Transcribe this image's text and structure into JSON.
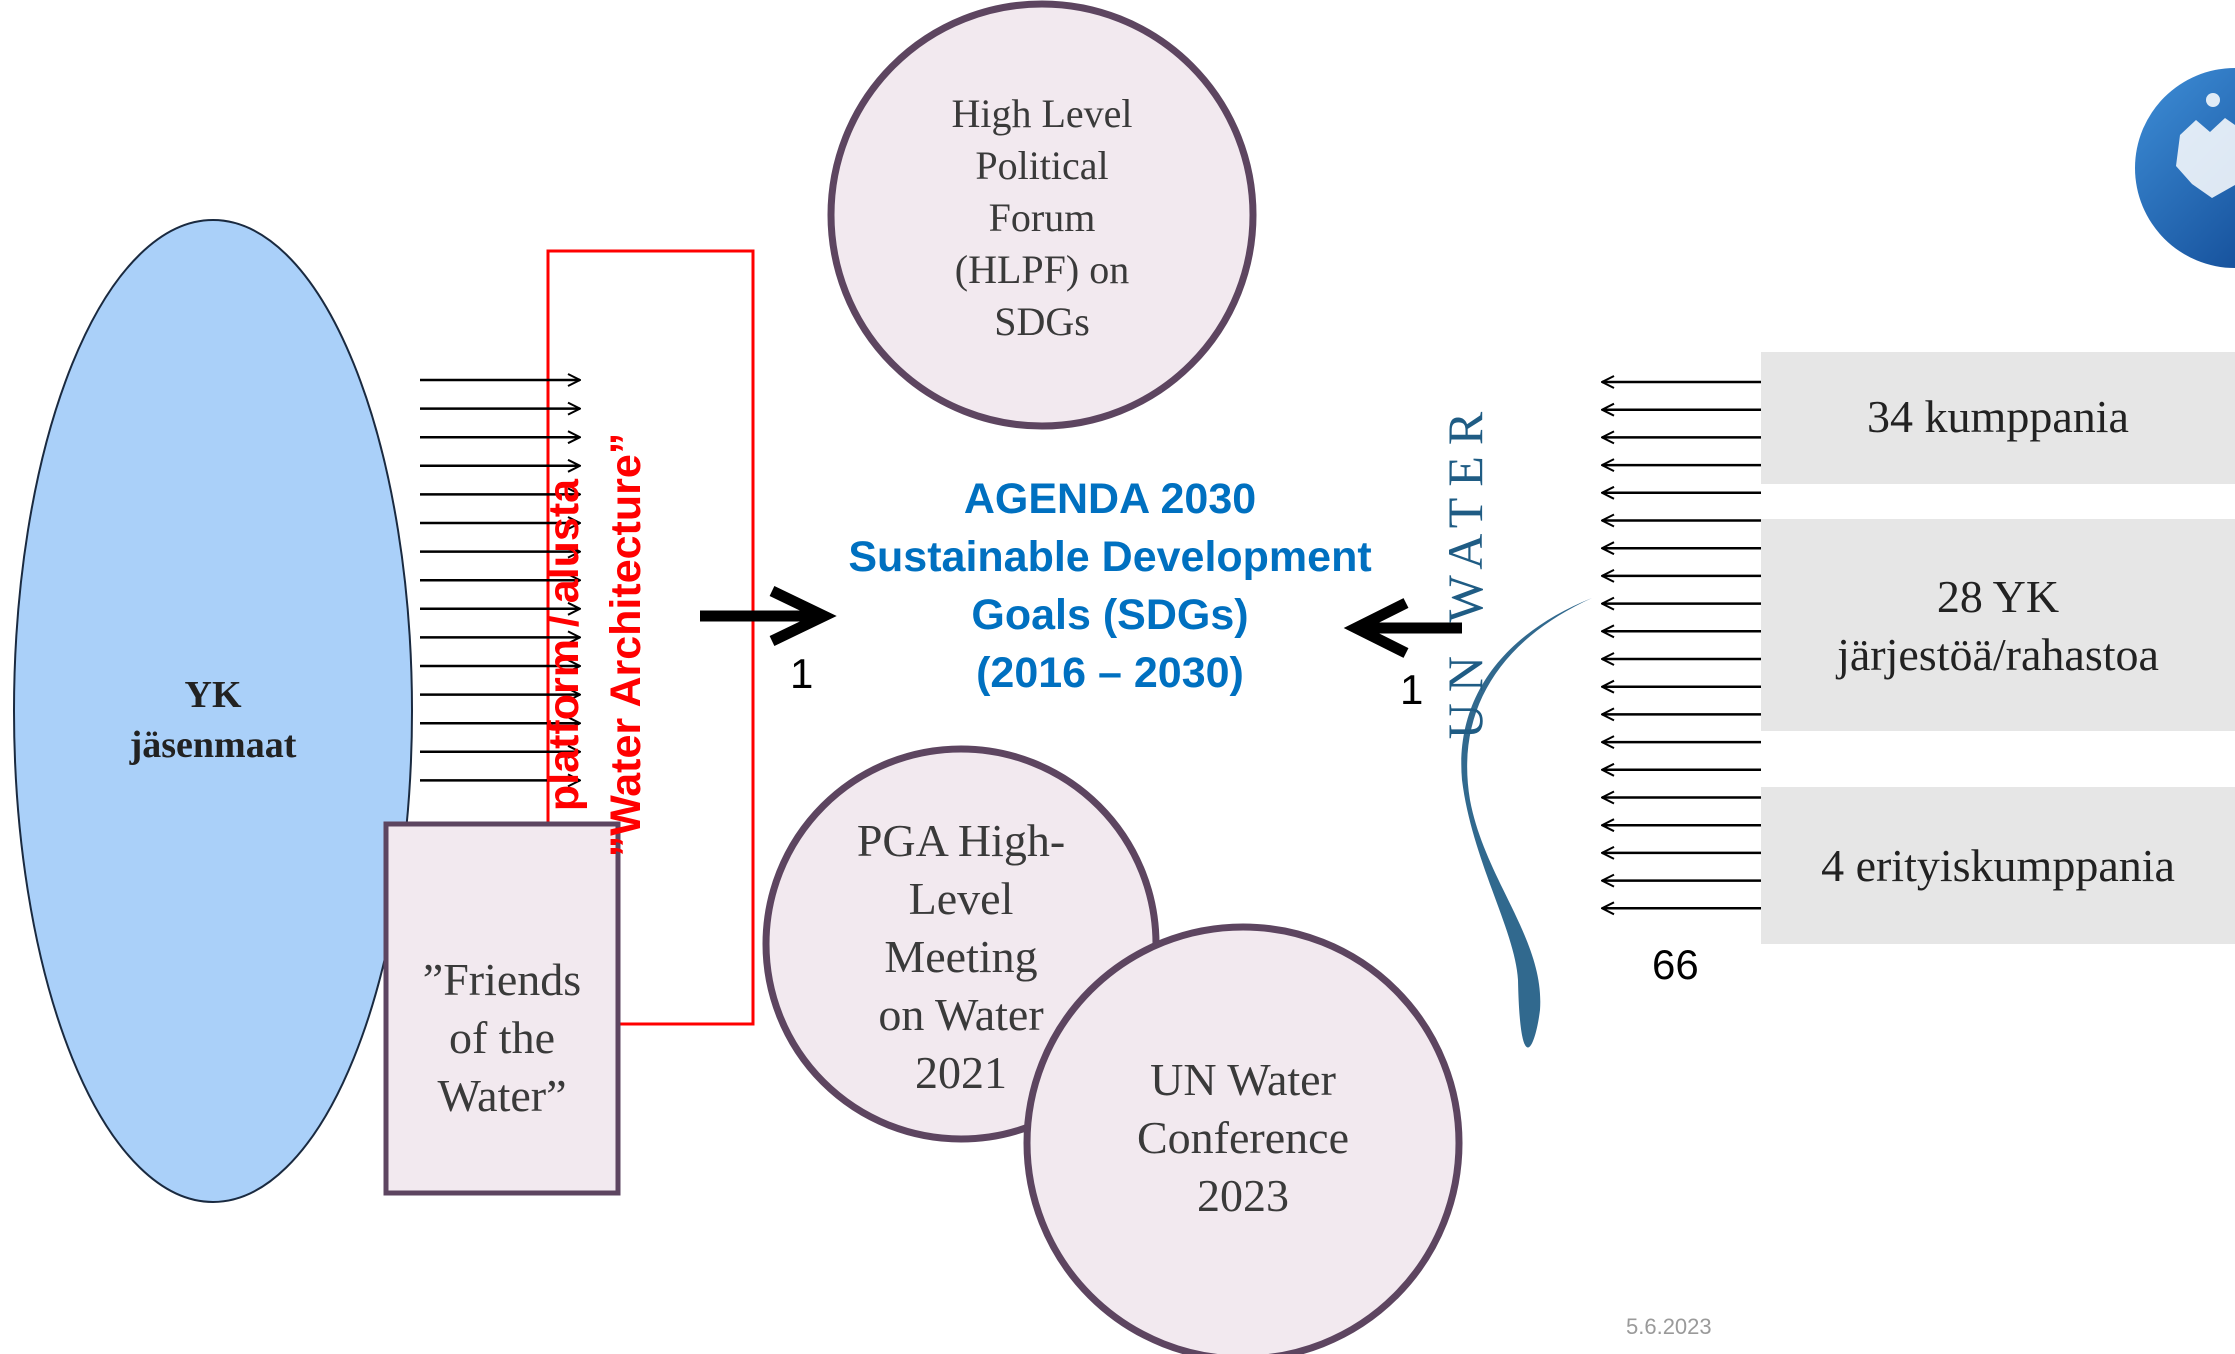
{
  "colors": {
    "ellipse_fill": "#aad0f9",
    "circle_fill": "#f2e9ef",
    "circle_stroke": "#5d4560",
    "platform_red": "#ff0000",
    "agenda_blue": "#0070c0",
    "grey_box": "#e6e6e6",
    "unwater_blue": "#1f5c84",
    "circle_text": "#3a3a3a"
  },
  "member_states": {
    "line1": "YK",
    "line2": "jäsenmaat"
  },
  "platform": {
    "line1": "platform / alusta",
    "line2": "”Water Architecture”"
  },
  "friends": {
    "line1": "”Friends",
    "line2": "of the",
    "line3": "Water”"
  },
  "hlpf": {
    "line1": "High Level",
    "line2": "Political",
    "line3": "Forum",
    "line4": "(HLPF) on",
    "line5": "SDGs"
  },
  "agenda": {
    "line1": "AGENDA 2030",
    "line2": "Sustainable Development",
    "line3": "Goals (SDGs)",
    "line4": "(2016 – 2030)"
  },
  "arrow_counts": {
    "left": "1",
    "right": "1"
  },
  "pga": {
    "line1": "PGA High-",
    "line2": "Level",
    "line3": "Meeting",
    "line4": "on Water",
    "line5": "2021"
  },
  "conference": {
    "line1": "UN Water",
    "line2": "Conference",
    "line3": "2023"
  },
  "un_water": {
    "logo_text": "UN WATER",
    "members_total": "66"
  },
  "partners": [
    {
      "line1": "34 kumppania",
      "line2": ""
    },
    {
      "line1": "28 YK",
      "line2": "järjestöä/rahastoa"
    },
    {
      "line1": "4 erityiskumppania",
      "line2": ""
    }
  ],
  "footer": {
    "date": "5.6.2023"
  },
  "logo": {
    "icon": "ministry-crest-icon"
  }
}
